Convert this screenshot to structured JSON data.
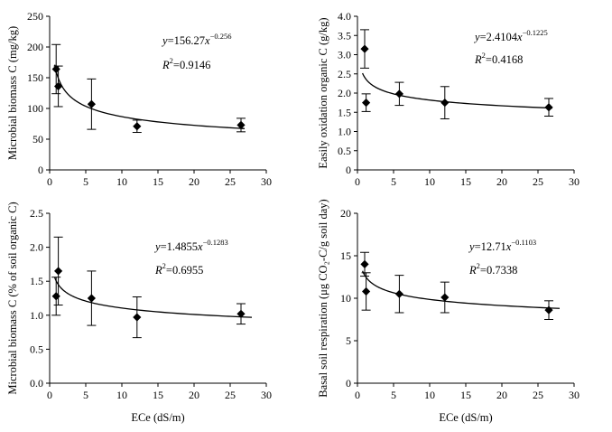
{
  "figure": {
    "colors": {
      "ink": "#000000",
      "background": "#ffffff"
    }
  },
  "chart_data": [
    {
      "type": "scatter",
      "panel": "top-left",
      "xlabel": "",
      "ylabel": "Microbial biomass C (mg/kg)",
      "xlim": [
        0,
        30
      ],
      "ylim": [
        0,
        250
      ],
      "xticks": [
        "0",
        "5",
        "10",
        "15",
        "20",
        "25",
        "30"
      ],
      "yticks": [
        "0",
        "50",
        "100",
        "150",
        "200",
        "250"
      ],
      "points": [
        {
          "x": 0.9,
          "y": 164,
          "err": 40
        },
        {
          "x": 1.2,
          "y": 136,
          "err": 33
        },
        {
          "x": 5.8,
          "y": 107,
          "err": 41
        },
        {
          "x": 12.1,
          "y": 71,
          "err": 10
        },
        {
          "x": 26.5,
          "y": 73,
          "err": 11
        }
      ],
      "fit": {
        "a": 156.27,
        "b": -0.256,
        "x_from": 0.7,
        "x_to": 27
      },
      "equation": {
        "y": "y",
        "eq": "=156.27",
        "x": "x",
        "exp": "−0.256"
      },
      "r2": {
        "r": "R",
        "sup": "2",
        "value": "=0.9146"
      }
    },
    {
      "type": "scatter",
      "panel": "top-right",
      "xlabel": "",
      "ylabel": "Easily oxidation organic C (g/kg)",
      "xlim": [
        0,
        30
      ],
      "ylim": [
        0,
        4
      ],
      "xticks": [
        "0",
        "5",
        "10",
        "15",
        "20",
        "25",
        "30"
      ],
      "yticks": [
        "0",
        "0.5",
        "1.0",
        "1.5",
        "2.0",
        "2.5",
        "3.0",
        "3.5",
        "4.0"
      ],
      "points": [
        {
          "x": 1.0,
          "y": 3.15,
          "err": 0.5
        },
        {
          "x": 1.2,
          "y": 1.75,
          "err": 0.23
        },
        {
          "x": 5.8,
          "y": 1.98,
          "err": 0.3
        },
        {
          "x": 12.1,
          "y": 1.75,
          "err": 0.42
        },
        {
          "x": 26.5,
          "y": 1.63,
          "err": 0.23
        }
      ],
      "fit": {
        "a": 2.4104,
        "b": -0.1225,
        "x_from": 0.7,
        "x_to": 27
      },
      "equation": {
        "y": "y",
        "eq": "=2.4104",
        "x": "x",
        "exp": "−0.1225"
      },
      "r2": {
        "r": "R",
        "sup": "2",
        "value": "=0.4168"
      }
    },
    {
      "type": "scatter",
      "panel": "bottom-left",
      "xlabel": "ECe (dS/m)",
      "ylabel": "Microbial biomass C (% of soil organic C)",
      "xlim": [
        0,
        30
      ],
      "ylim": [
        0,
        2.5
      ],
      "xticks": [
        "0",
        "5",
        "10",
        "15",
        "20",
        "25",
        "30"
      ],
      "yticks": [
        "0.0",
        "0.5",
        "1.0",
        "1.5",
        "2.0",
        "2.5"
      ],
      "points": [
        {
          "x": 0.9,
          "y": 1.28,
          "err": 0.28
        },
        {
          "x": 1.2,
          "y": 1.65,
          "err": 0.5
        },
        {
          "x": 5.8,
          "y": 1.25,
          "err": 0.4
        },
        {
          "x": 12.1,
          "y": 0.97,
          "err": 0.3
        },
        {
          "x": 26.5,
          "y": 1.02,
          "err": 0.15
        }
      ],
      "fit": {
        "a": 1.4855,
        "b": -0.1283,
        "x_from": 0.7,
        "x_to": 28
      },
      "equation": {
        "y": "y",
        "eq": "=1.4855",
        "x": "x",
        "exp": "−0.1283"
      },
      "r2": {
        "r": "R",
        "sup": "2",
        "value": "=0.6955"
      }
    },
    {
      "type": "scatter",
      "panel": "bottom-right",
      "xlabel": "ECe (dS/m)",
      "ylabel": "Basal soil respiration (μg CO₂-C/g soil day)",
      "xlim": [
        0,
        30
      ],
      "ylim": [
        0,
        20
      ],
      "xticks": [
        "0",
        "5",
        "10",
        "15",
        "20",
        "25",
        "30"
      ],
      "yticks": [
        "0",
        "5",
        "10",
        "15",
        "20"
      ],
      "points": [
        {
          "x": 1.0,
          "y": 14.0,
          "err": 1.4
        },
        {
          "x": 1.2,
          "y": 10.8,
          "err": 2.2
        },
        {
          "x": 5.8,
          "y": 10.5,
          "err": 2.2
        },
        {
          "x": 12.1,
          "y": 10.1,
          "err": 1.8
        },
        {
          "x": 26.5,
          "y": 8.6,
          "err": 1.1
        }
      ],
      "fit": {
        "a": 12.71,
        "b": -0.1103,
        "x_from": 0.7,
        "x_to": 28
      },
      "equation": {
        "y": "y",
        "eq": "=12.71",
        "x": "x",
        "exp": "−0.1103"
      },
      "r2": {
        "r": "R",
        "sup": "2",
        "value": "=0.7338"
      }
    }
  ]
}
